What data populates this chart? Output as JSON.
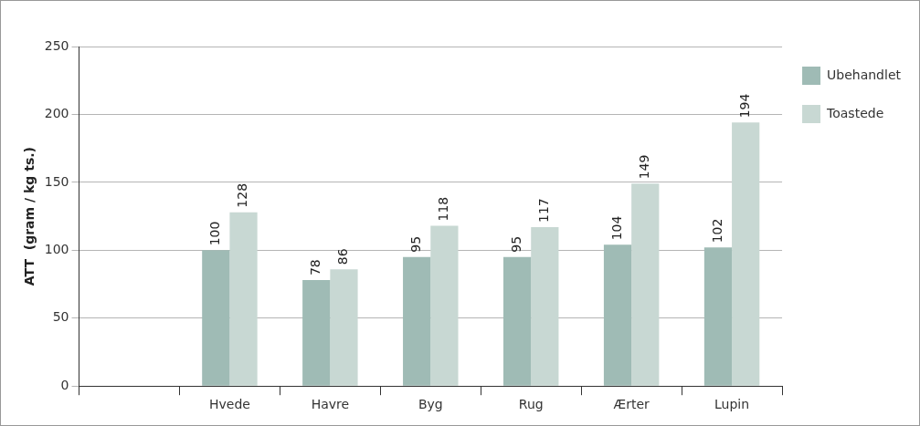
{
  "chart_data": {
    "type": "bar",
    "ylabel": "ATT  (gram / kg ts.)",
    "categories": [
      null,
      "Hvede",
      "Havre",
      "Byg",
      "Rug",
      "Ærter",
      "Lupin"
    ],
    "series": [
      {
        "name": "Ubehandlet",
        "color": "#9fbbb5",
        "values": [
          null,
          100,
          78,
          95,
          95,
          104,
          102
        ]
      },
      {
        "name": "Toastede",
        "color": "#c8d8d3",
        "values": [
          null,
          128,
          86,
          118,
          117,
          149,
          194
        ]
      }
    ],
    "ylim": [
      0,
      250
    ],
    "yticks": [
      0,
      50,
      100,
      150,
      200,
      250
    ],
    "grid": "y",
    "legend": "top right",
    "data_labels": true
  }
}
